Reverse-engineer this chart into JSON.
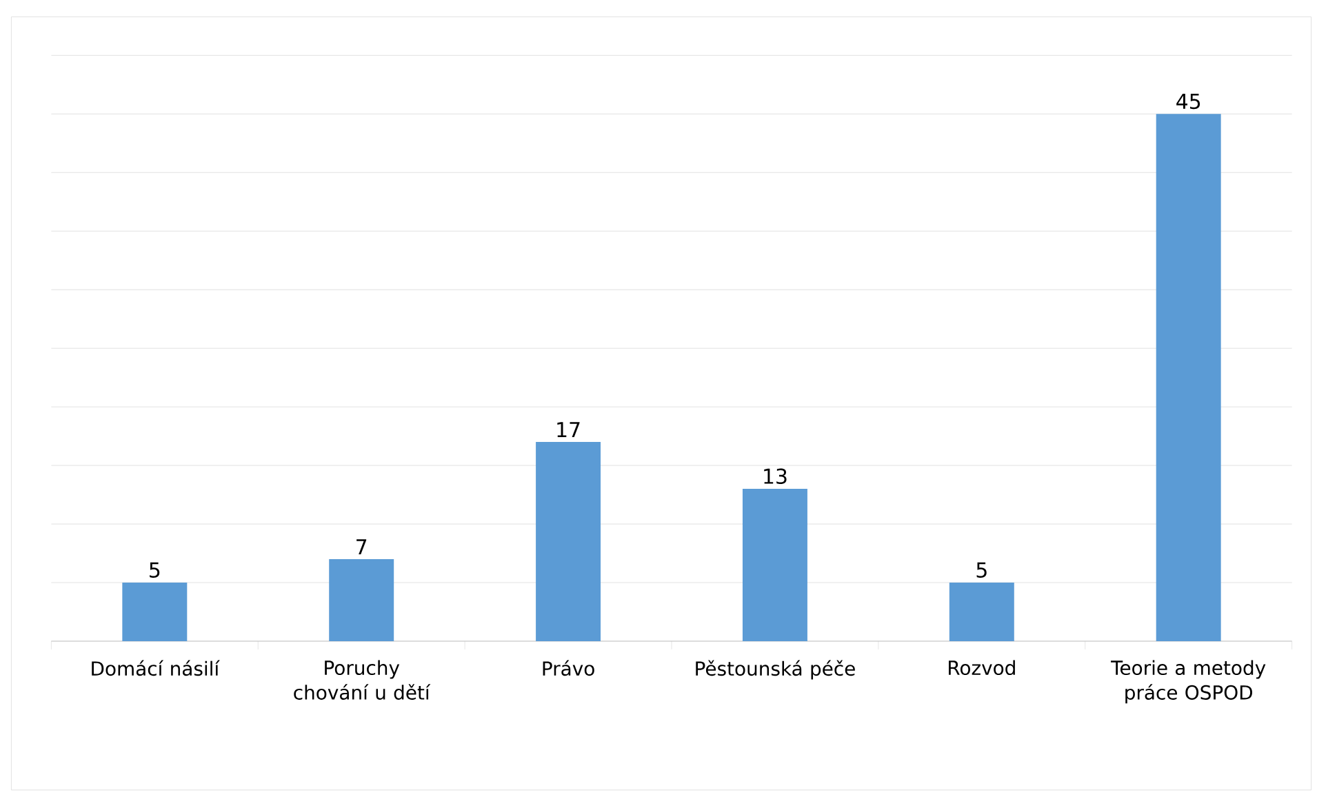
{
  "chart_data": {
    "type": "bar",
    "categories": [
      "Domácí násilí",
      "Poruchy chování u dětí",
      "Právo",
      "Pěstounská péče",
      "Rozvod",
      "Teorie a metody práce OSPOD"
    ],
    "values": [
      5,
      7,
      17,
      13,
      5,
      45
    ],
    "color": "#5b9bd5",
    "data_labels": true,
    "grid": "y",
    "tick_labels": "x",
    "ylim": [
      0,
      50
    ],
    "yticks": [
      {
        "value": 0,
        "label": null
      },
      {
        "value": 5,
        "label": null
      },
      {
        "value": 10,
        "label": null
      },
      {
        "value": 15,
        "label": null
      },
      {
        "value": 20,
        "label": null
      },
      {
        "value": 25,
        "label": null
      },
      {
        "value": 30,
        "label": null
      },
      {
        "value": 35,
        "label": null
      },
      {
        "value": 40,
        "label": null
      },
      {
        "value": 45,
        "label": null
      },
      {
        "value": 50,
        "label": null
      }
    ]
  }
}
